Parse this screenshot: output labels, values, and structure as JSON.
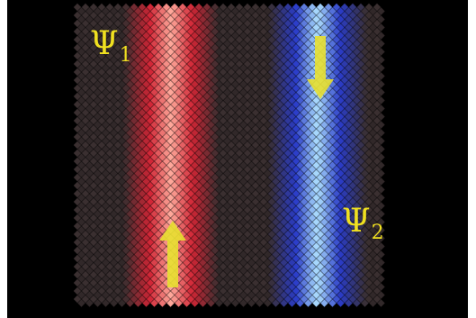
{
  "labels": {
    "psi1": {
      "symbol": "Ψ",
      "subscript": "1"
    },
    "psi2": {
      "symbol": "Ψ",
      "subscript": "2"
    }
  },
  "colors": {
    "background": "#000000",
    "psi1_core": "#ffaa9c",
    "psi1_edge": "#d02535",
    "psi2_core": "#aee0ff",
    "psi2_edge": "#2a3cc8",
    "lattice_idle": "#3a2f30",
    "arrow": "#e8e030"
  },
  "arrows": {
    "up_arrow": {
      "direction": "up"
    },
    "down_arrow": {
      "direction": "down"
    }
  }
}
